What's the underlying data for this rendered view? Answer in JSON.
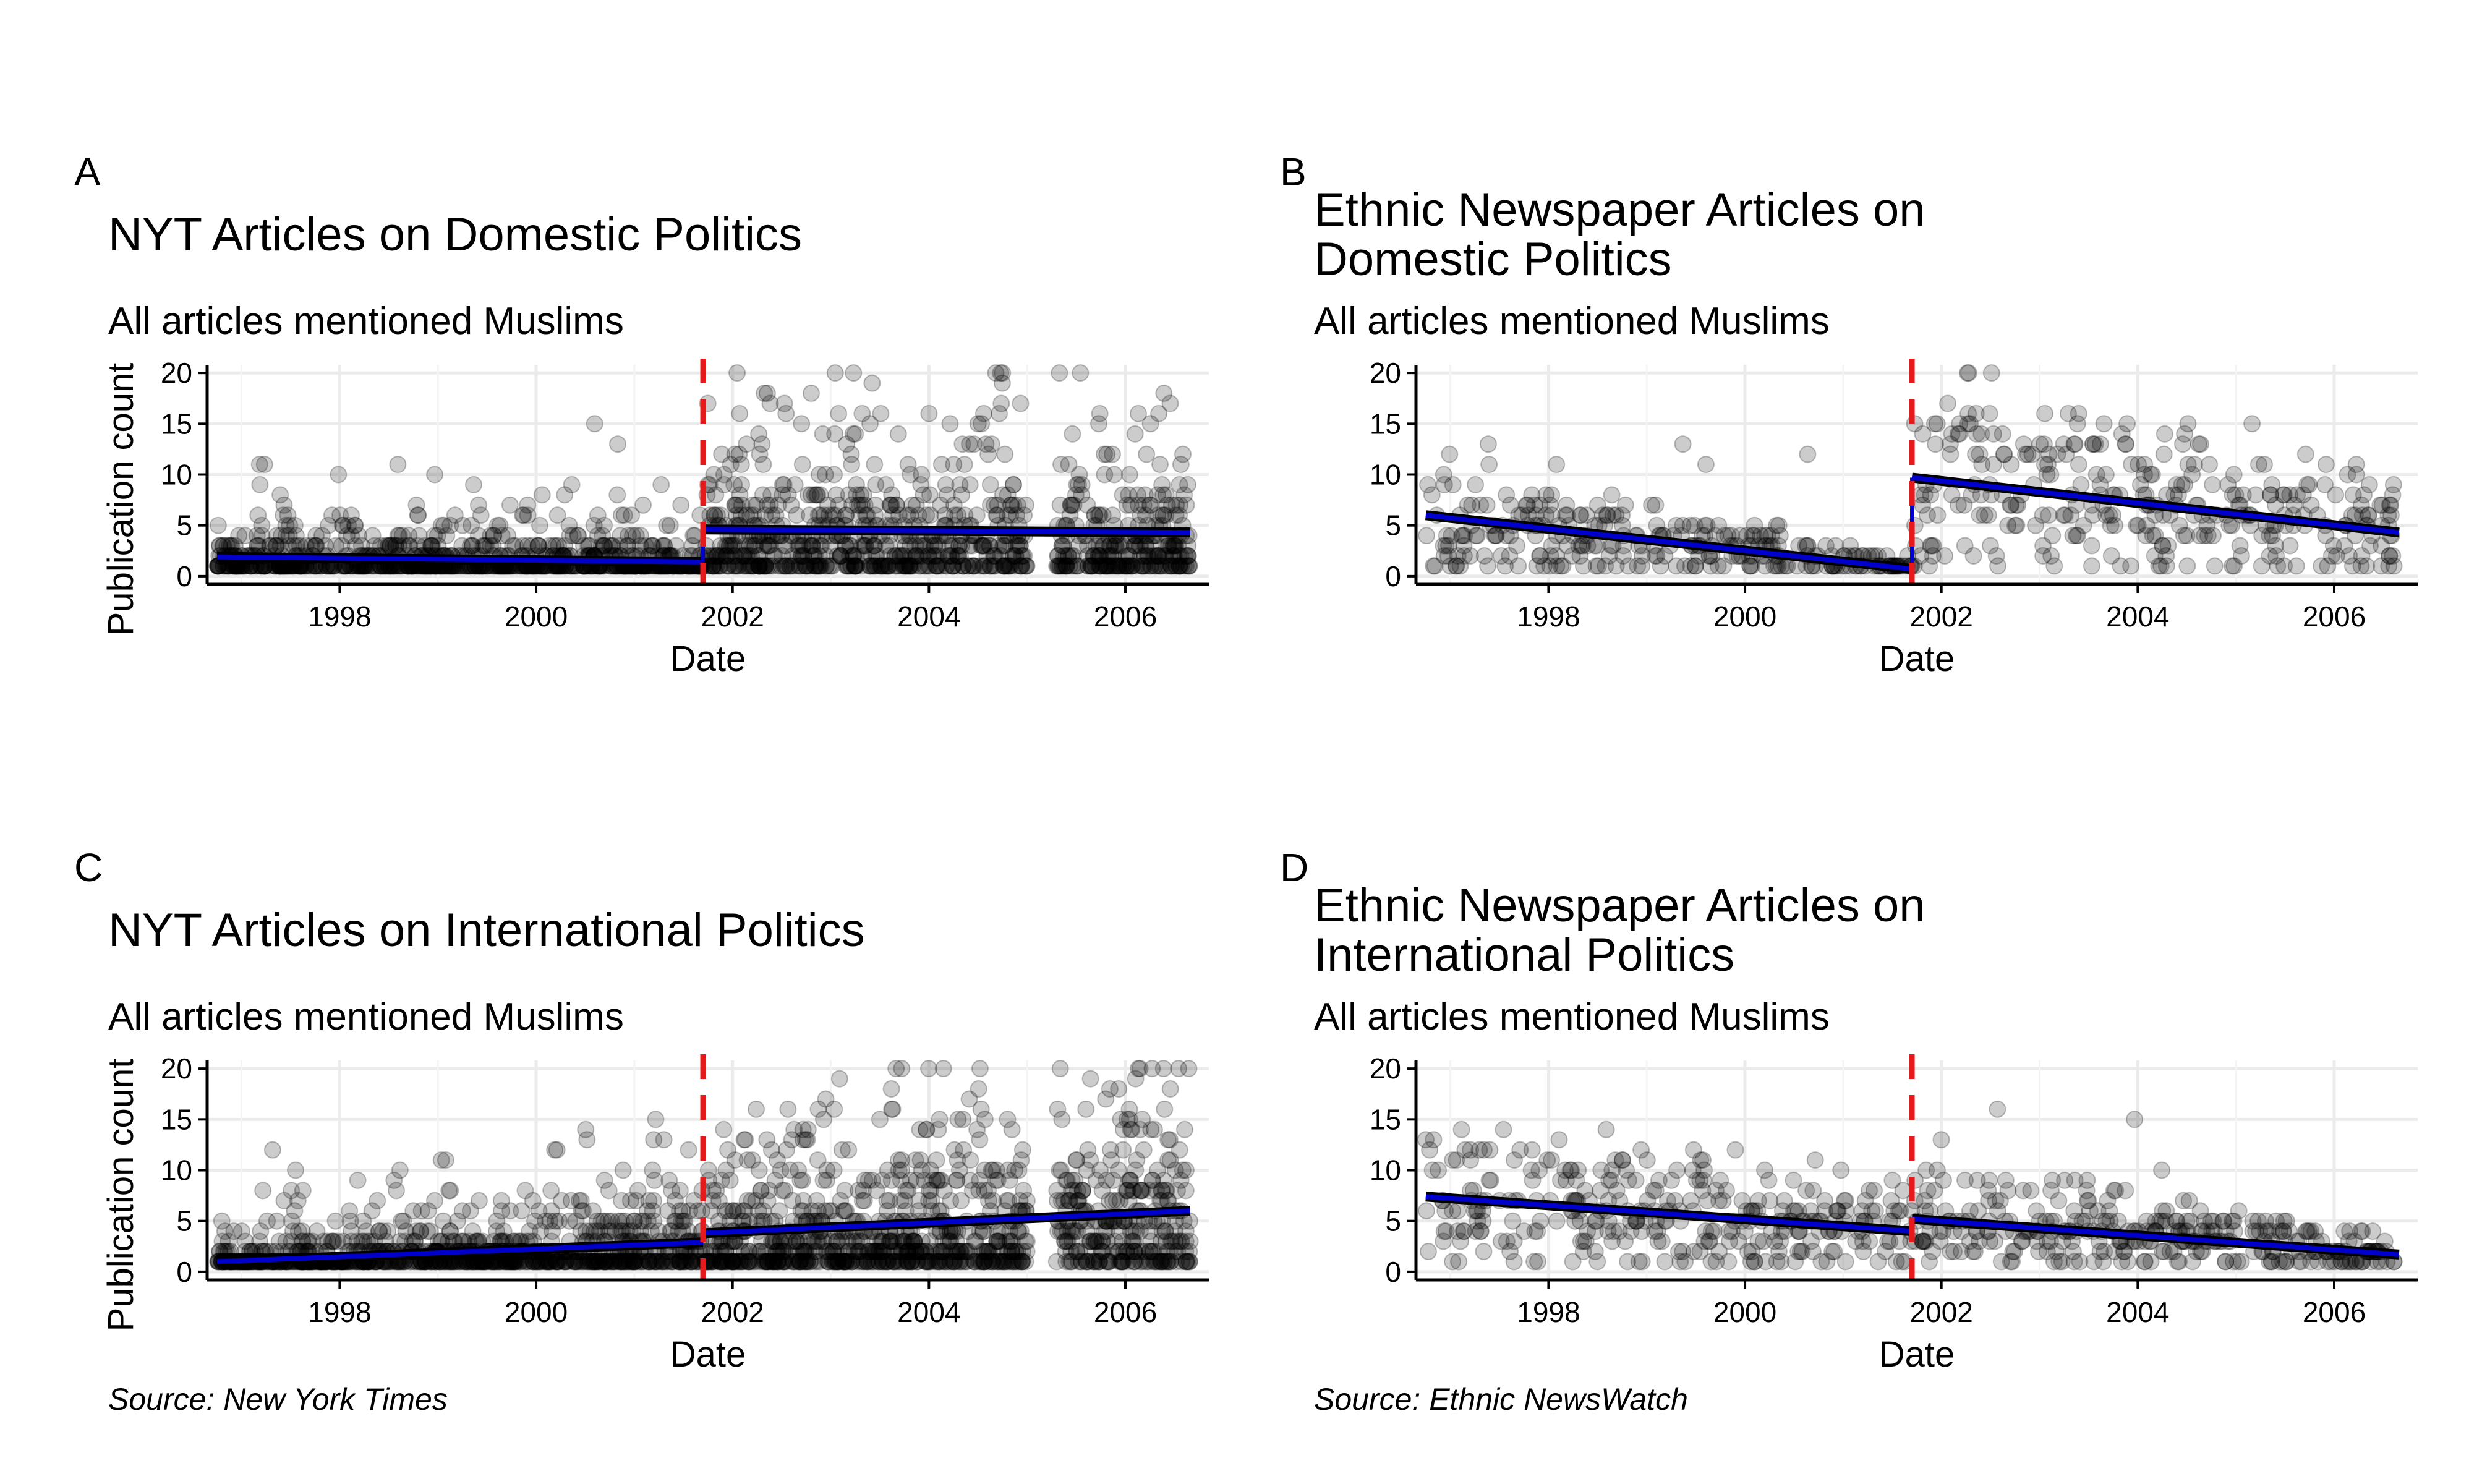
{
  "chart_data": [
    {
      "type": "scatter",
      "panel": "A",
      "title": [
        "NYT Articles on Domestic Politics"
      ],
      "subtitle": "All articles mentioned Muslims",
      "xlabel": "Date",
      "ylabel": "Publication count",
      "xlim": [
        1996.65,
        2006.85
      ],
      "ylim": [
        -0.8,
        20.8
      ],
      "xticks": [
        1998,
        2000,
        2002,
        2004,
        2006
      ],
      "yticks": [
        0,
        5,
        10,
        15,
        20
      ],
      "grid": true,
      "intervention": {
        "x": 2001.7,
        "color": "#e41a1c",
        "style": "dashed"
      },
      "series_style": {
        "points": "#000000",
        "fit": "#0000cc"
      },
      "points": {
        "pre_range": [
          1996.75,
          2001.7
        ],
        "post_range": [
          2001.72,
          2006.66
        ],
        "pre_n": 900,
        "post_n": 1000,
        "pre_mean": 1.8,
        "post_mean": 3.6,
        "gap": [
          2005.0,
          2005.3
        ],
        "density": "dense"
      },
      "fit": {
        "pre": {
          "x": [
            1996.75,
            2001.7
          ],
          "y": [
            1.9,
            1.4
          ]
        },
        "post": {
          "x": [
            2001.7,
            2006.66
          ],
          "y": [
            4.6,
            4.3
          ]
        }
      },
      "caption": ""
    },
    {
      "type": "scatter",
      "panel": "B",
      "title": [
        "Ethnic Newspaper Articles on",
        "Domestic Politics"
      ],
      "subtitle": "All articles mentioned Muslims",
      "xlabel": "Date",
      "ylabel": "",
      "xlim": [
        1996.65,
        2006.85
      ],
      "ylim": [
        -0.8,
        20.8
      ],
      "xticks": [
        1998,
        2000,
        2002,
        2004,
        2006
      ],
      "yticks": [
        0,
        5,
        10,
        15,
        20
      ],
      "grid": true,
      "intervention": {
        "x": 2001.7,
        "color": "#e41a1c",
        "style": "dashed"
      },
      "series_style": {
        "points": "#000000",
        "fit": "#0000cc"
      },
      "points": {
        "pre_range": [
          1996.75,
          2001.7
        ],
        "post_range": [
          2001.72,
          2006.66
        ],
        "pre_n": 300,
        "post_n": 320,
        "pre_mean": 3.3,
        "post_mean": 6.8,
        "gap": null,
        "density": "sparse"
      },
      "fit": {
        "pre": {
          "x": [
            1996.75,
            2001.7
          ],
          "y": [
            6.0,
            0.7
          ]
        },
        "post": {
          "x": [
            2001.7,
            2006.66
          ],
          "y": [
            9.7,
            4.3
          ]
        }
      },
      "caption": ""
    },
    {
      "type": "scatter",
      "panel": "C",
      "title": [
        "NYT Articles on International Politics"
      ],
      "subtitle": "All articles mentioned Muslims",
      "xlabel": "Date",
      "ylabel": "Publication count",
      "xlim": [
        1996.65,
        2006.85
      ],
      "ylim": [
        -0.8,
        20.8
      ],
      "xticks": [
        1998,
        2000,
        2002,
        2004,
        2006
      ],
      "yticks": [
        0,
        5,
        10,
        15,
        20
      ],
      "grid": true,
      "intervention": {
        "x": 2001.7,
        "color": "#e41a1c",
        "style": "dashed"
      },
      "series_style": {
        "points": "#000000",
        "fit": "#0000cc"
      },
      "points": {
        "pre_range": [
          1996.75,
          2001.7
        ],
        "post_range": [
          2001.72,
          2006.66
        ],
        "pre_n": 950,
        "post_n": 1100,
        "pre_mean": 2.0,
        "post_mean": 4.8,
        "gap": [
          2005.0,
          2005.3
        ],
        "density": "dense"
      },
      "fit": {
        "pre": {
          "x": [
            1996.75,
            2001.7
          ],
          "y": [
            1.0,
            2.9
          ]
        },
        "post": {
          "x": [
            2001.7,
            2006.66
          ],
          "y": [
            3.8,
            6.0
          ]
        }
      },
      "caption": "Source: New York Times"
    },
    {
      "type": "scatter",
      "panel": "D",
      "title": [
        "Ethnic Newspaper Articles on",
        "International Politics"
      ],
      "subtitle": "All articles mentioned Muslims",
      "xlabel": "Date",
      "ylabel": "",
      "xlim": [
        1996.65,
        2006.85
      ],
      "ylim": [
        -0.8,
        20.8
      ],
      "xticks": [
        1998,
        2000,
        2002,
        2004,
        2006
      ],
      "yticks": [
        0,
        5,
        10,
        15,
        20
      ],
      "grid": true,
      "intervention": {
        "x": 2001.7,
        "color": "#e41a1c",
        "style": "dashed"
      },
      "series_style": {
        "points": "#000000",
        "fit": "#0000cc"
      },
      "points": {
        "pre_range": [
          1996.75,
          2001.7
        ],
        "post_range": [
          2001.72,
          2006.66
        ],
        "pre_n": 320,
        "post_n": 330,
        "pre_mean": 5.6,
        "post_mean": 3.5,
        "gap": null,
        "density": "sparse"
      },
      "fit": {
        "pre": {
          "x": [
            1996.75,
            2001.7
          ],
          "y": [
            7.4,
            4.0
          ]
        },
        "post": {
          "x": [
            2001.7,
            2006.66
          ],
          "y": [
            5.2,
            1.7
          ]
        }
      },
      "caption": "Source: Ethnic NewsWatch"
    }
  ]
}
